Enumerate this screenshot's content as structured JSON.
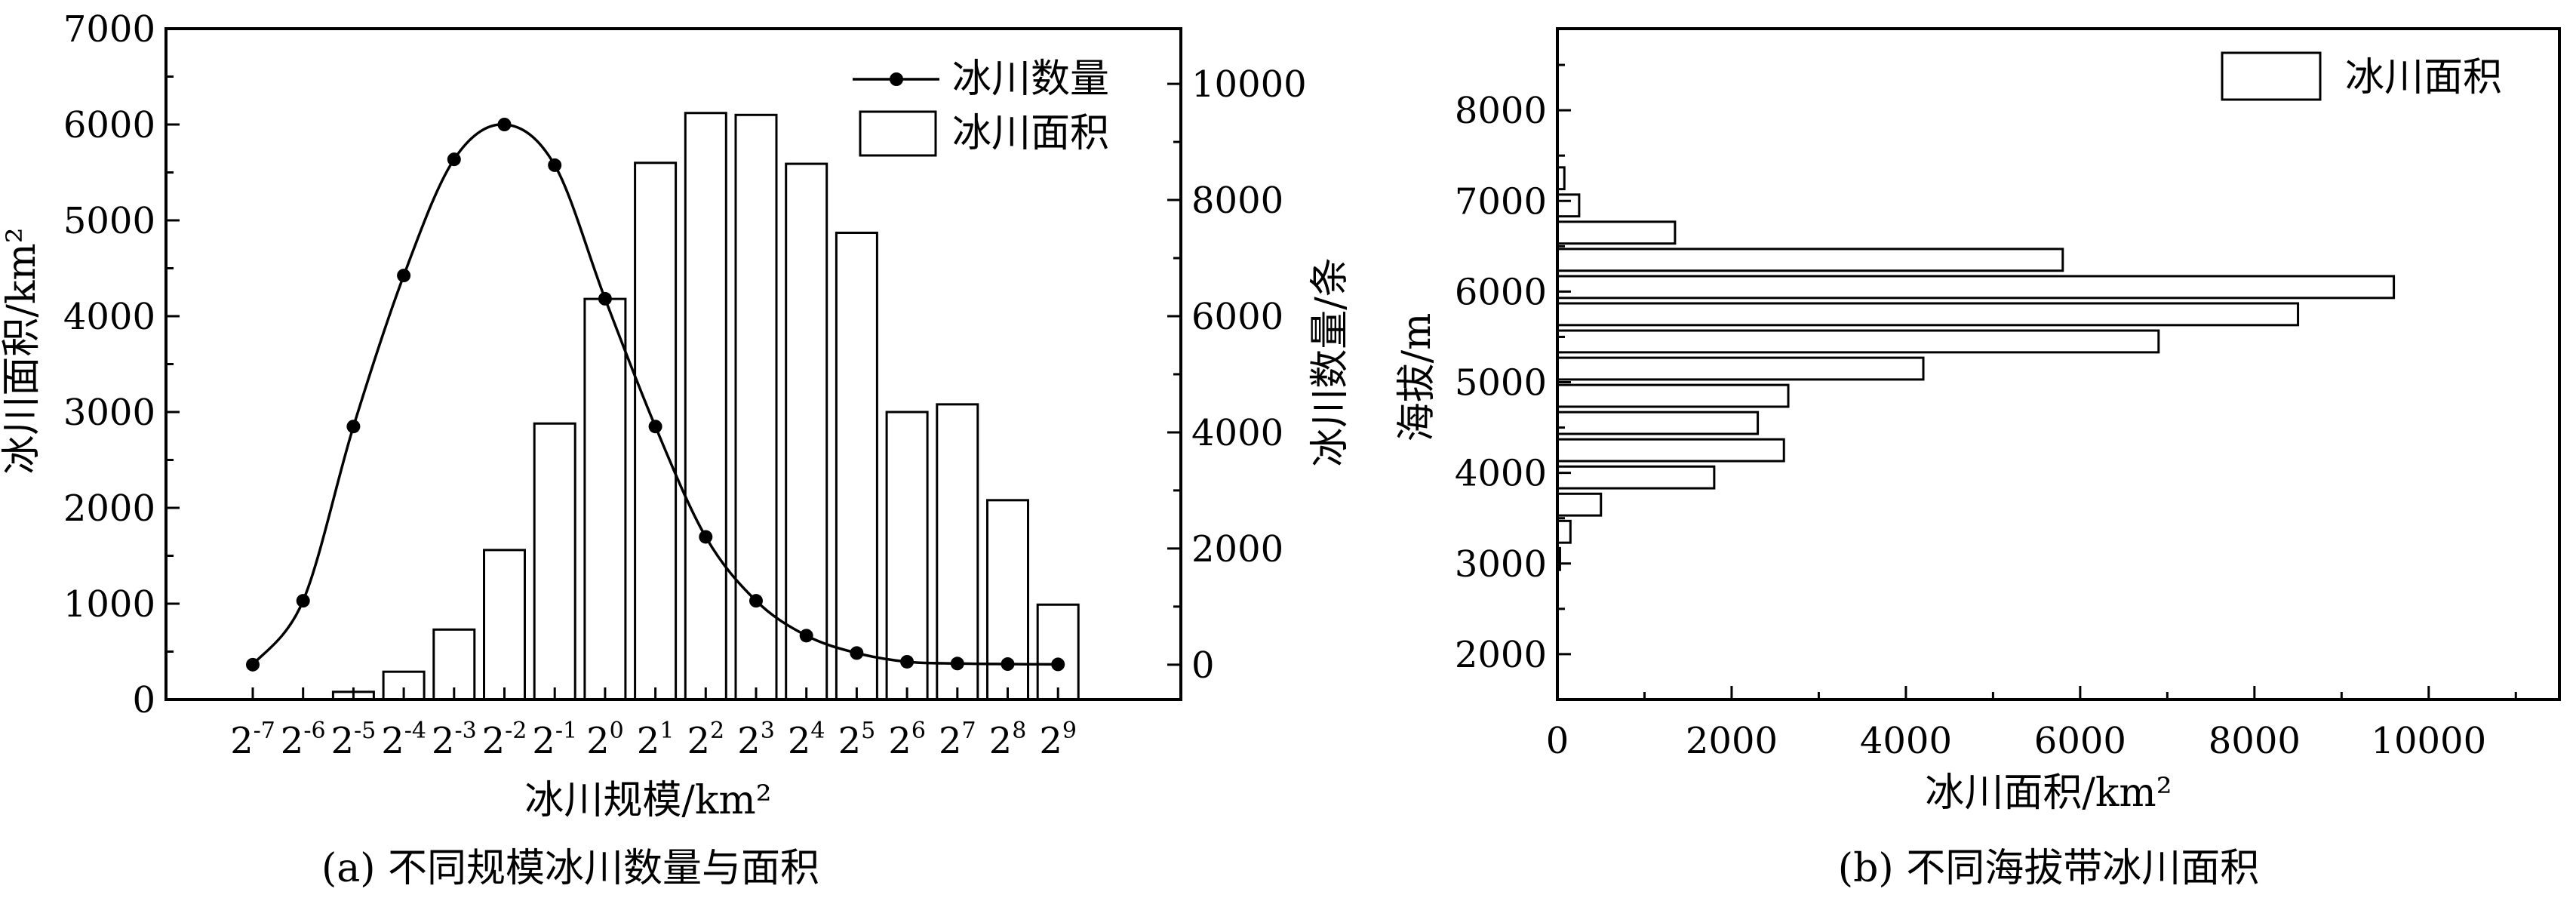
{
  "chart_data": [
    {
      "id": "a",
      "type": "bar",
      "caption": "(a) 不同规模冰川数量与面积",
      "xlabel": "冰川规模/km²",
      "ylabel": "冰川面积/km²",
      "y2label": "冰川数量/条",
      "categories": [
        {
          "base": "2",
          "exp": "-7"
        },
        {
          "base": "2",
          "exp": "-6"
        },
        {
          "base": "2",
          "exp": "-5"
        },
        {
          "base": "2",
          "exp": "-4"
        },
        {
          "base": "2",
          "exp": "-3"
        },
        {
          "base": "2",
          "exp": "-2"
        },
        {
          "base": "2",
          "exp": "-1"
        },
        {
          "base": "2",
          "exp": "0"
        },
        {
          "base": "2",
          "exp": "1"
        },
        {
          "base": "2",
          "exp": "2"
        },
        {
          "base": "2",
          "exp": "3"
        },
        {
          "base": "2",
          "exp": "4"
        },
        {
          "base": "2",
          "exp": "5"
        },
        {
          "base": "2",
          "exp": "6"
        },
        {
          "base": "2",
          "exp": "7"
        },
        {
          "base": "2",
          "exp": "8"
        },
        {
          "base": "2",
          "exp": "9"
        }
      ],
      "ylim": [
        0,
        7000
      ],
      "yticks": [
        0,
        1000,
        2000,
        3000,
        4000,
        5000,
        6000,
        7000
      ],
      "y2lim": [
        -600,
        10950
      ],
      "y2ticks": [
        0,
        2000,
        4000,
        6000,
        8000,
        10000
      ],
      "series": [
        {
          "name": "冰川面积",
          "kind": "bar",
          "axis": "left",
          "values": [
            0,
            0,
            80,
            290,
            730,
            1560,
            2880,
            4180,
            5600,
            6120,
            6100,
            5590,
            4870,
            3000,
            3080,
            2080,
            990
          ]
        },
        {
          "name": "冰川数量",
          "kind": "line",
          "axis": "right",
          "values": [
            0,
            1100,
            4100,
            6700,
            8700,
            9300,
            8600,
            6300,
            4100,
            2200,
            1100,
            500,
            200,
            50,
            20,
            10,
            5
          ]
        }
      ],
      "legend": "top-right"
    },
    {
      "id": "b",
      "type": "bar",
      "orientation": "horizontal",
      "caption": "(b) 不同海拔带冰川面积",
      "xlabel": "冰川面积/km²",
      "ylabel": "海拔/m",
      "xlim": [
        0,
        11500
      ],
      "xticks": [
        0,
        2000,
        4000,
        6000,
        8000,
        10000
      ],
      "ylim": [
        1500,
        8900
      ],
      "yticks": [
        2000,
        3000,
        4000,
        5000,
        6000,
        7000,
        8000
      ],
      "bin_width": 300,
      "series": [
        {
          "name": "冰川面积",
          "bins": [
            {
              "y": 3050,
              "value": 30
            },
            {
              "y": 3350,
              "value": 150
            },
            {
              "y": 3650,
              "value": 500
            },
            {
              "y": 3950,
              "value": 1800
            },
            {
              "y": 4250,
              "value": 2600
            },
            {
              "y": 4550,
              "value": 2300
            },
            {
              "y": 4850,
              "value": 2650
            },
            {
              "y": 5150,
              "value": 4200
            },
            {
              "y": 5450,
              "value": 6900
            },
            {
              "y": 5750,
              "value": 8500
            },
            {
              "y": 6050,
              "value": 9600
            },
            {
              "y": 6350,
              "value": 5800
            },
            {
              "y": 6650,
              "value": 1350
            },
            {
              "y": 6950,
              "value": 250
            },
            {
              "y": 7250,
              "value": 80
            }
          ]
        }
      ],
      "legend": "top-right"
    }
  ]
}
